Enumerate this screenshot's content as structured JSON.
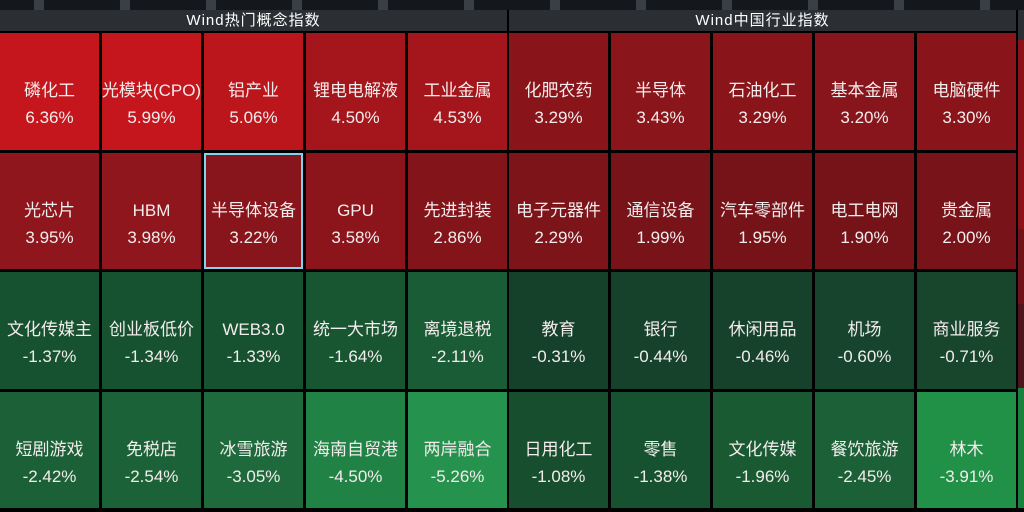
{
  "colors": {
    "background": "#000000",
    "top_strip": "#14171c",
    "header_bg": "#2b2e33",
    "header_text": "#ffffff",
    "cell_text": "#f3ecec",
    "highlight_border": "#7ed6ee"
  },
  "chart_data": [
    {
      "type": "heatmap",
      "title": "Wind热门概念指数",
      "rows": 4,
      "cols": 5,
      "value_unit": "%",
      "cells": [
        {
          "label": "磷化工",
          "value": 6.36,
          "display": "6.36%",
          "color": "#c6161d"
        },
        {
          "label": "光模块(CPO)",
          "value": 5.99,
          "display": "5.99%",
          "color": "#c6161d"
        },
        {
          "label": "铝产业",
          "value": 5.06,
          "display": "5.06%",
          "color": "#bb161c"
        },
        {
          "label": "锂电电解液",
          "value": 4.5,
          "display": "4.50%",
          "color": "#a4161b"
        },
        {
          "label": "工业金属",
          "value": 4.53,
          "display": "4.53%",
          "color": "#a4161b"
        },
        {
          "label": "光芯片",
          "value": 3.95,
          "display": "3.95%",
          "color": "#8f161c"
        },
        {
          "label": "HBM",
          "value": 3.98,
          "display": "3.98%",
          "color": "#8f161c"
        },
        {
          "label": "半导体设备",
          "value": 3.22,
          "display": "3.22%",
          "color": "#88151b",
          "highlighted": true
        },
        {
          "label": "GPU",
          "value": 3.58,
          "display": "3.58%",
          "color": "#8b151b"
        },
        {
          "label": "先进封装",
          "value": 2.86,
          "display": "2.86%",
          "color": "#82141a"
        },
        {
          "label": "文化传媒主",
          "value": -1.37,
          "display": "-1.37%",
          "color": "#175230"
        },
        {
          "label": "创业板低价",
          "value": -1.34,
          "display": "-1.34%",
          "color": "#175230"
        },
        {
          "label": "WEB3.0",
          "value": -1.33,
          "display": "-1.33%",
          "color": "#175230"
        },
        {
          "label": "统一大市场",
          "value": -1.64,
          "display": "-1.64%",
          "color": "#185631"
        },
        {
          "label": "离境退税",
          "value": -2.11,
          "display": "-2.11%",
          "color": "#1a5c35"
        },
        {
          "label": "短剧游戏",
          "value": -2.42,
          "display": "-2.42%",
          "color": "#1b6037"
        },
        {
          "label": "免税店",
          "value": -2.54,
          "display": "-2.54%",
          "color": "#1c6238"
        },
        {
          "label": "冰雪旅游",
          "value": -3.05,
          "display": "-3.05%",
          "color": "#1e6a3c"
        },
        {
          "label": "海南自贸港",
          "value": -4.5,
          "display": "-4.50%",
          "color": "#218245"
        },
        {
          "label": "两岸融合",
          "value": -5.26,
          "display": "-5.26%",
          "color": "#25924e"
        }
      ]
    },
    {
      "type": "heatmap",
      "title": "Wind中国行业指数",
      "rows": 4,
      "cols": 5,
      "value_unit": "%",
      "cells": [
        {
          "label": "化肥农药",
          "value": 3.29,
          "display": "3.29%",
          "color": "#89151b"
        },
        {
          "label": "半导体",
          "value": 3.43,
          "display": "3.43%",
          "color": "#8a151b"
        },
        {
          "label": "石油化工",
          "value": 3.29,
          "display": "3.29%",
          "color": "#89151b"
        },
        {
          "label": "基本金属",
          "value": 3.2,
          "display": "3.20%",
          "color": "#88151b"
        },
        {
          "label": "电脑硬件",
          "value": 3.3,
          "display": "3.30%",
          "color": "#89151b"
        },
        {
          "label": "电子元器件",
          "value": 2.29,
          "display": "2.29%",
          "color": "#7c141a"
        },
        {
          "label": "通信设备",
          "value": 1.99,
          "display": "1.99%",
          "color": "#771319"
        },
        {
          "label": "汽车零部件",
          "value": 1.95,
          "display": "1.95%",
          "color": "#761319"
        },
        {
          "label": "电工电网",
          "value": 1.9,
          "display": "1.90%",
          "color": "#751319"
        },
        {
          "label": "贵金属",
          "value": 2.0,
          "display": "2.00%",
          "color": "#771319"
        },
        {
          "label": "教育",
          "value": -0.31,
          "display": "-0.31%",
          "color": "#15402a"
        },
        {
          "label": "银行",
          "value": -0.44,
          "display": "-0.44%",
          "color": "#16422b"
        },
        {
          "label": "休闲用品",
          "value": -0.46,
          "display": "-0.46%",
          "color": "#16422b"
        },
        {
          "label": "机场",
          "value": -0.6,
          "display": "-0.60%",
          "color": "#16442c"
        },
        {
          "label": "商业服务",
          "value": -0.71,
          "display": "-0.71%",
          "color": "#17462d"
        },
        {
          "label": "日用化工",
          "value": -1.08,
          "display": "-1.08%",
          "color": "#174e2e"
        },
        {
          "label": "零售",
          "value": -1.38,
          "display": "-1.38%",
          "color": "#175230"
        },
        {
          "label": "文化传媒",
          "value": -1.96,
          "display": "-1.96%",
          "color": "#195a33"
        },
        {
          "label": "餐饮旅游",
          "value": -2.45,
          "display": "-2.45%",
          "color": "#1b6037"
        },
        {
          "label": "林木",
          "value": -3.91,
          "display": "-3.91%",
          "color": "#229148"
        }
      ]
    }
  ],
  "edge_sliver": {
    "segments": [
      {
        "color": "#2b2e33",
        "height": 6
      },
      {
        "color": "#8c1218",
        "height": 38
      },
      {
        "color": "#6f1318",
        "height": 15
      },
      {
        "color": "#4d151c",
        "height": 17
      },
      {
        "color": "#17823c",
        "height": 24
      }
    ]
  }
}
